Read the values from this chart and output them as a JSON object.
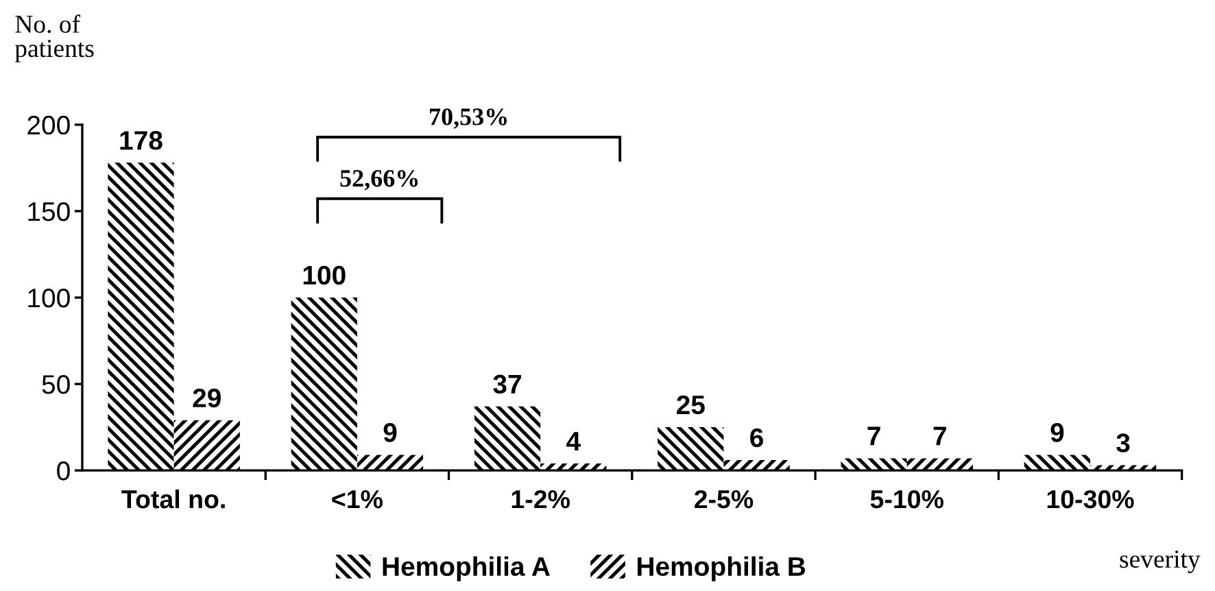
{
  "chart_data": {
    "type": "bar",
    "ylabel": "No. of\npatients",
    "xlabel": "severity",
    "categories": [
      "Total no.",
      "<1%",
      "1-2%",
      "2-5%",
      "5-10%",
      "10-30%"
    ],
    "series": [
      {
        "name": "Hemophilia A",
        "color": "#000000",
        "values": [
          178,
          100,
          37,
          25,
          7,
          9
        ]
      },
      {
        "name": "Hemophilia B",
        "color": "#000000",
        "values": [
          29,
          9,
          4,
          6,
          7,
          3
        ]
      }
    ],
    "ylim": [
      0,
      200
    ],
    "yticks": [
      0,
      50,
      100,
      150,
      200
    ],
    "data_labels": true,
    "legend": "bottom",
    "annotations": [
      "52,66%",
      "70,53%"
    ]
  }
}
